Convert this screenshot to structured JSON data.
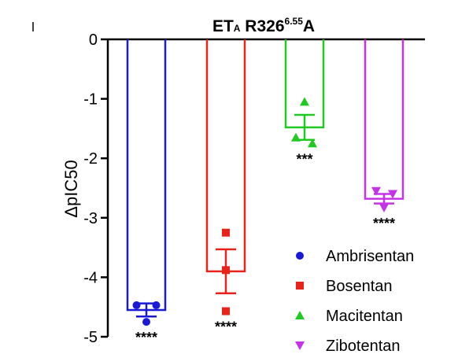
{
  "chart_data": {
    "type": "bar",
    "title": {
      "main": "ET",
      "sub": "A",
      "main2": " R326",
      "sup": "6.55",
      "main3": "A"
    },
    "ylabel": "ΔpIC50",
    "ylim": [
      -5,
      0
    ],
    "yticks": [
      "0",
      "-1",
      "-2",
      "-3",
      "-4",
      "-5"
    ],
    "grid": false,
    "legend_position": "bottom-right",
    "series": [
      {
        "name": "Ambrisentan",
        "color": "#1a1ad6",
        "marker": "circle",
        "mean": -4.55,
        "error": 0.11,
        "points": [
          -4.47,
          -4.47,
          -4.75
        ],
        "point_offsets": [
          -0.25,
          0.25,
          0.0
        ],
        "significance": "****"
      },
      {
        "name": "Bosentan",
        "color": "#e8231b",
        "marker": "square",
        "mean": -3.9,
        "error": 0.37,
        "points": [
          -3.25,
          -3.88,
          -4.57
        ],
        "point_offsets": [
          0.0,
          0.0,
          0.0
        ],
        "significance": "****"
      },
      {
        "name": "Macitentan",
        "color": "#22c922",
        "marker": "triangle-up",
        "mean": -1.48,
        "error": 0.21,
        "points": [
          -1.05,
          -1.65,
          -1.75
        ],
        "point_offsets": [
          0.0,
          -0.22,
          0.2
        ],
        "significance": "***"
      },
      {
        "name": "Zibotentan",
        "color": "#c434e6",
        "marker": "triangle-down",
        "mean": -2.68,
        "error": 0.08,
        "points": [
          -2.55,
          -2.6,
          -2.83
        ],
        "point_offsets": [
          -0.2,
          0.22,
          0.0
        ],
        "significance": "****"
      }
    ]
  }
}
